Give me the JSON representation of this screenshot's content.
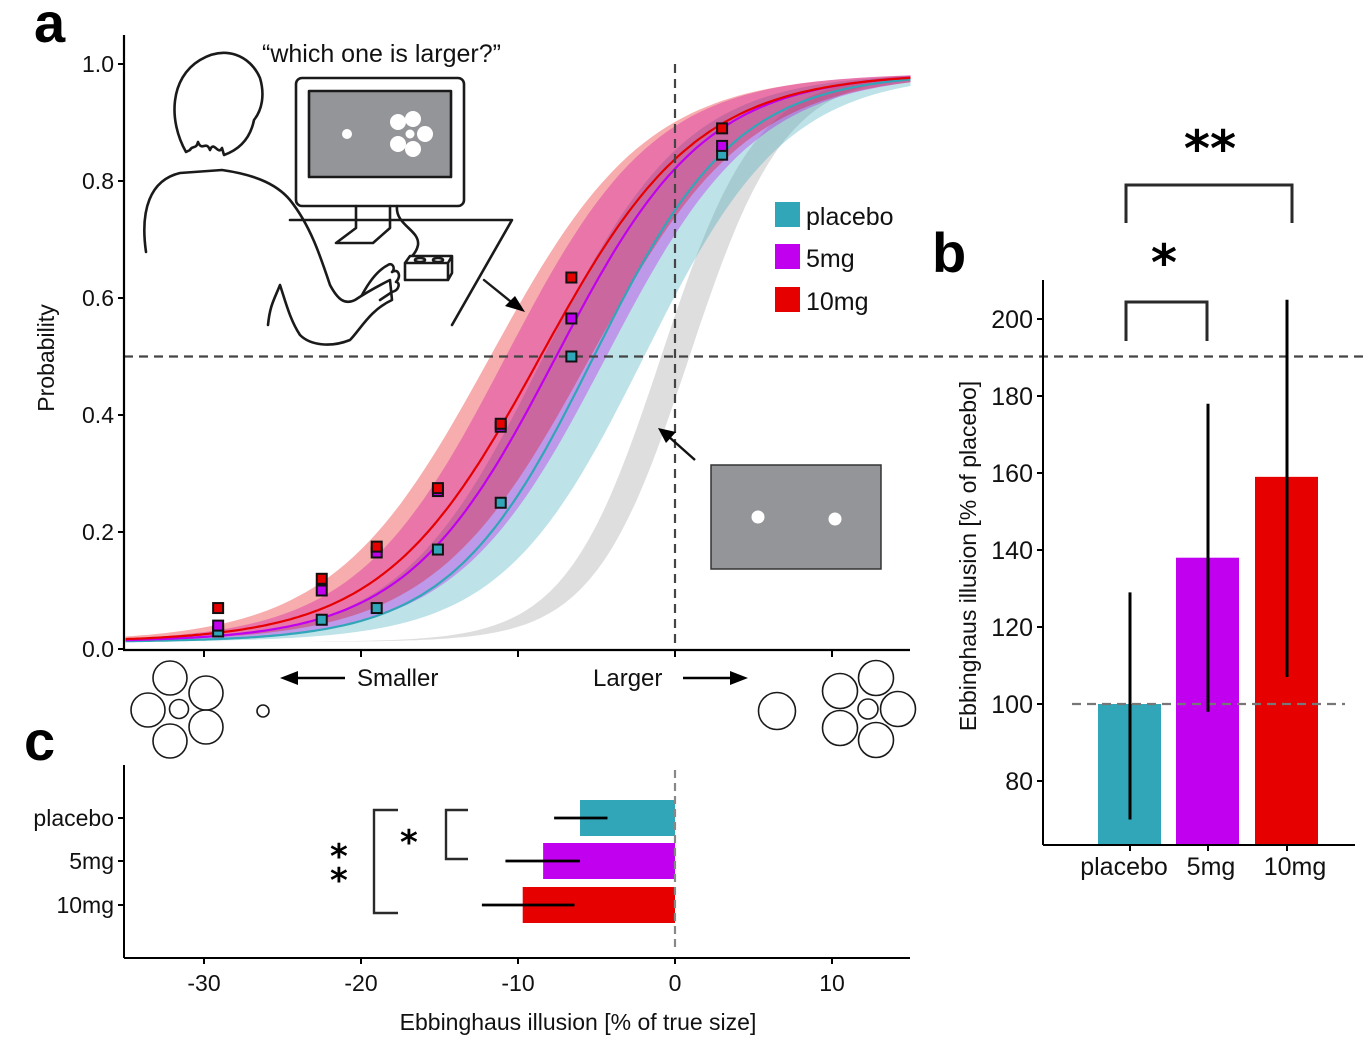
{
  "panels": {
    "a": {
      "letter": "a"
    },
    "b": {
      "letter": "b"
    },
    "c": {
      "letter": "c"
    }
  },
  "colors": {
    "placebo": "#31a6b8",
    "5mg": "#c000ee",
    "10mg": "#e60000",
    "reference": "#c8c8c8",
    "stimulus_gray": "#939598"
  },
  "illustration": {
    "question": "“which one is larger?”",
    "smaller_label": "Smaller",
    "larger_label": "Larger"
  },
  "chart_data": [
    {
      "id": "a",
      "type": "line",
      "title": "",
      "xlabel": "",
      "ylabel": "Probability",
      "xlim": [
        -35,
        15
      ],
      "ylim": [
        0,
        1.0
      ],
      "yticks": [
        "0.0",
        "0.2",
        "0.4",
        "0.6",
        "0.8",
        "1.0"
      ],
      "ytick_values": [
        0,
        0.2,
        0.4,
        0.6,
        0.8,
        1.0
      ],
      "xtick_values": [
        -30,
        -20,
        -10,
        0,
        10
      ],
      "reference_lines": {
        "x": 0,
        "y": 0.5
      },
      "legend": {
        "placement": "right",
        "entries": [
          "placebo",
          "5mg",
          "10mg"
        ]
      },
      "x": [
        -29.1,
        -22.5,
        -19.0,
        -15.1,
        -11.1,
        -6.6,
        3.0
      ],
      "series": [
        {
          "name": "placebo",
          "pse": -5.2,
          "slope": 0.22,
          "values": [
            0.03,
            0.05,
            0.07,
            0.17,
            0.25,
            0.5,
            0.845
          ]
        },
        {
          "name": "5mg",
          "pse": -7.6,
          "slope": 0.21,
          "values": [
            0.04,
            0.1,
            0.165,
            0.27,
            0.38,
            0.565,
            0.86
          ]
        },
        {
          "name": "10mg",
          "pse": -8.6,
          "slope": 0.2,
          "values": [
            0.07,
            0.12,
            0.175,
            0.275,
            0.385,
            0.635,
            0.89
          ]
        },
        {
          "name": "veridical",
          "pse": 0,
          "slope": 0.33,
          "values": []
        }
      ]
    },
    {
      "id": "b",
      "type": "bar",
      "title": "",
      "xlabel": "",
      "ylabel": "Ebbinghaus illusion  [% of placebo]",
      "ylim": [
        63,
        210
      ],
      "yticks": [
        "80",
        "100",
        "120",
        "140",
        "160",
        "180",
        "200"
      ],
      "ytick_values": [
        80,
        100,
        120,
        140,
        160,
        180,
        200
      ],
      "reference_line": 100,
      "categories": [
        "placebo",
        "5mg",
        "10mg"
      ],
      "values": [
        100,
        138,
        159
      ],
      "error_low": [
        70,
        98,
        107
      ],
      "error_high": [
        129,
        178,
        205
      ],
      "significance": [
        {
          "pair": [
            "placebo",
            "5mg"
          ],
          "label": "*"
        },
        {
          "pair": [
            "placebo",
            "10mg"
          ],
          "label": "**"
        }
      ]
    },
    {
      "id": "c",
      "type": "bar",
      "orientation": "horizontal",
      "title": "",
      "xlabel": "Ebbinghaus illusion [% of true size]",
      "ylabel": "",
      "xlim": [
        -35,
        15
      ],
      "xticks": [
        "-30",
        "-20",
        "-10",
        "0",
        "10"
      ],
      "xtick_values": [
        -30,
        -20,
        -10,
        0,
        10
      ],
      "reference_line": 0,
      "categories": [
        "placebo",
        "5mg",
        "10mg"
      ],
      "values": [
        -6.05,
        -8.4,
        -9.7
      ],
      "error_low": [
        -7.7,
        -10.8,
        -12.3
      ],
      "error_high": [
        -4.3,
        -6.05,
        -6.4
      ],
      "significance": [
        {
          "pair": [
            "placebo",
            "5mg"
          ],
          "label": "*"
        },
        {
          "pair": [
            "placebo",
            "10mg"
          ],
          "label": "**"
        }
      ]
    }
  ]
}
